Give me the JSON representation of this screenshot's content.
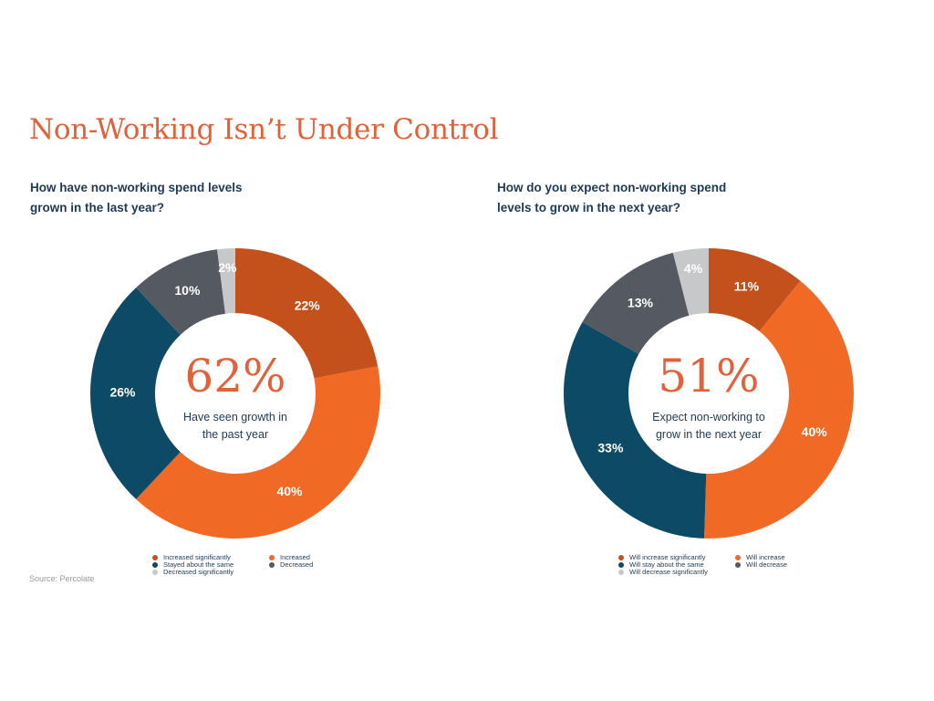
{
  "title": "Non-Working Isn’t Under Control",
  "source": "Source: Percolate",
  "chart_data": [
    {
      "type": "pie",
      "question_lines": [
        "How have non-working spend levels",
        "grown in the last year?"
      ],
      "center_value": "62%",
      "center_caption_lines": [
        "Have seen growth in",
        "the past year"
      ],
      "slices": [
        {
          "name": "Increased significantly",
          "value": 22,
          "label": "22%",
          "color": "#c4511c"
        },
        {
          "name": "Increased",
          "value": 40,
          "label": "40%",
          "color": "#f06a25"
        },
        {
          "name": "Stayed about the same",
          "value": 26,
          "label": "26%",
          "color": "#0d4a66"
        },
        {
          "name": "Decreased",
          "value": 10,
          "label": "10%",
          "color": "#555a62"
        },
        {
          "name": "Decreased significantly",
          "value": 2,
          "label": "2%",
          "color": "#c7c8ca"
        }
      ],
      "legend_order": [
        0,
        1,
        2,
        3,
        4
      ]
    },
    {
      "type": "pie",
      "question_lines": [
        "How do you expect non-working spend",
        "levels to grow in the next year?"
      ],
      "center_value": "51%",
      "center_caption_lines": [
        "Expect non-working to",
        "grow in the next year"
      ],
      "slices": [
        {
          "name": "Will increase significantly",
          "value": 11,
          "label": "11%",
          "color": "#c4511c"
        },
        {
          "name": "Will increase",
          "value": 40,
          "label": "40%",
          "color": "#f06a25"
        },
        {
          "name": "Will stay about the same",
          "value": 33,
          "label": "33%",
          "color": "#0d4a66"
        },
        {
          "name": "Will decrease",
          "value": 13,
          "label": "13%",
          "color": "#555a62"
        },
        {
          "name": "Will decrease significantly",
          "value": 4,
          "label": "4%",
          "color": "#c7c8ca"
        }
      ],
      "legend_order": [
        0,
        1,
        2,
        3,
        4
      ]
    }
  ]
}
